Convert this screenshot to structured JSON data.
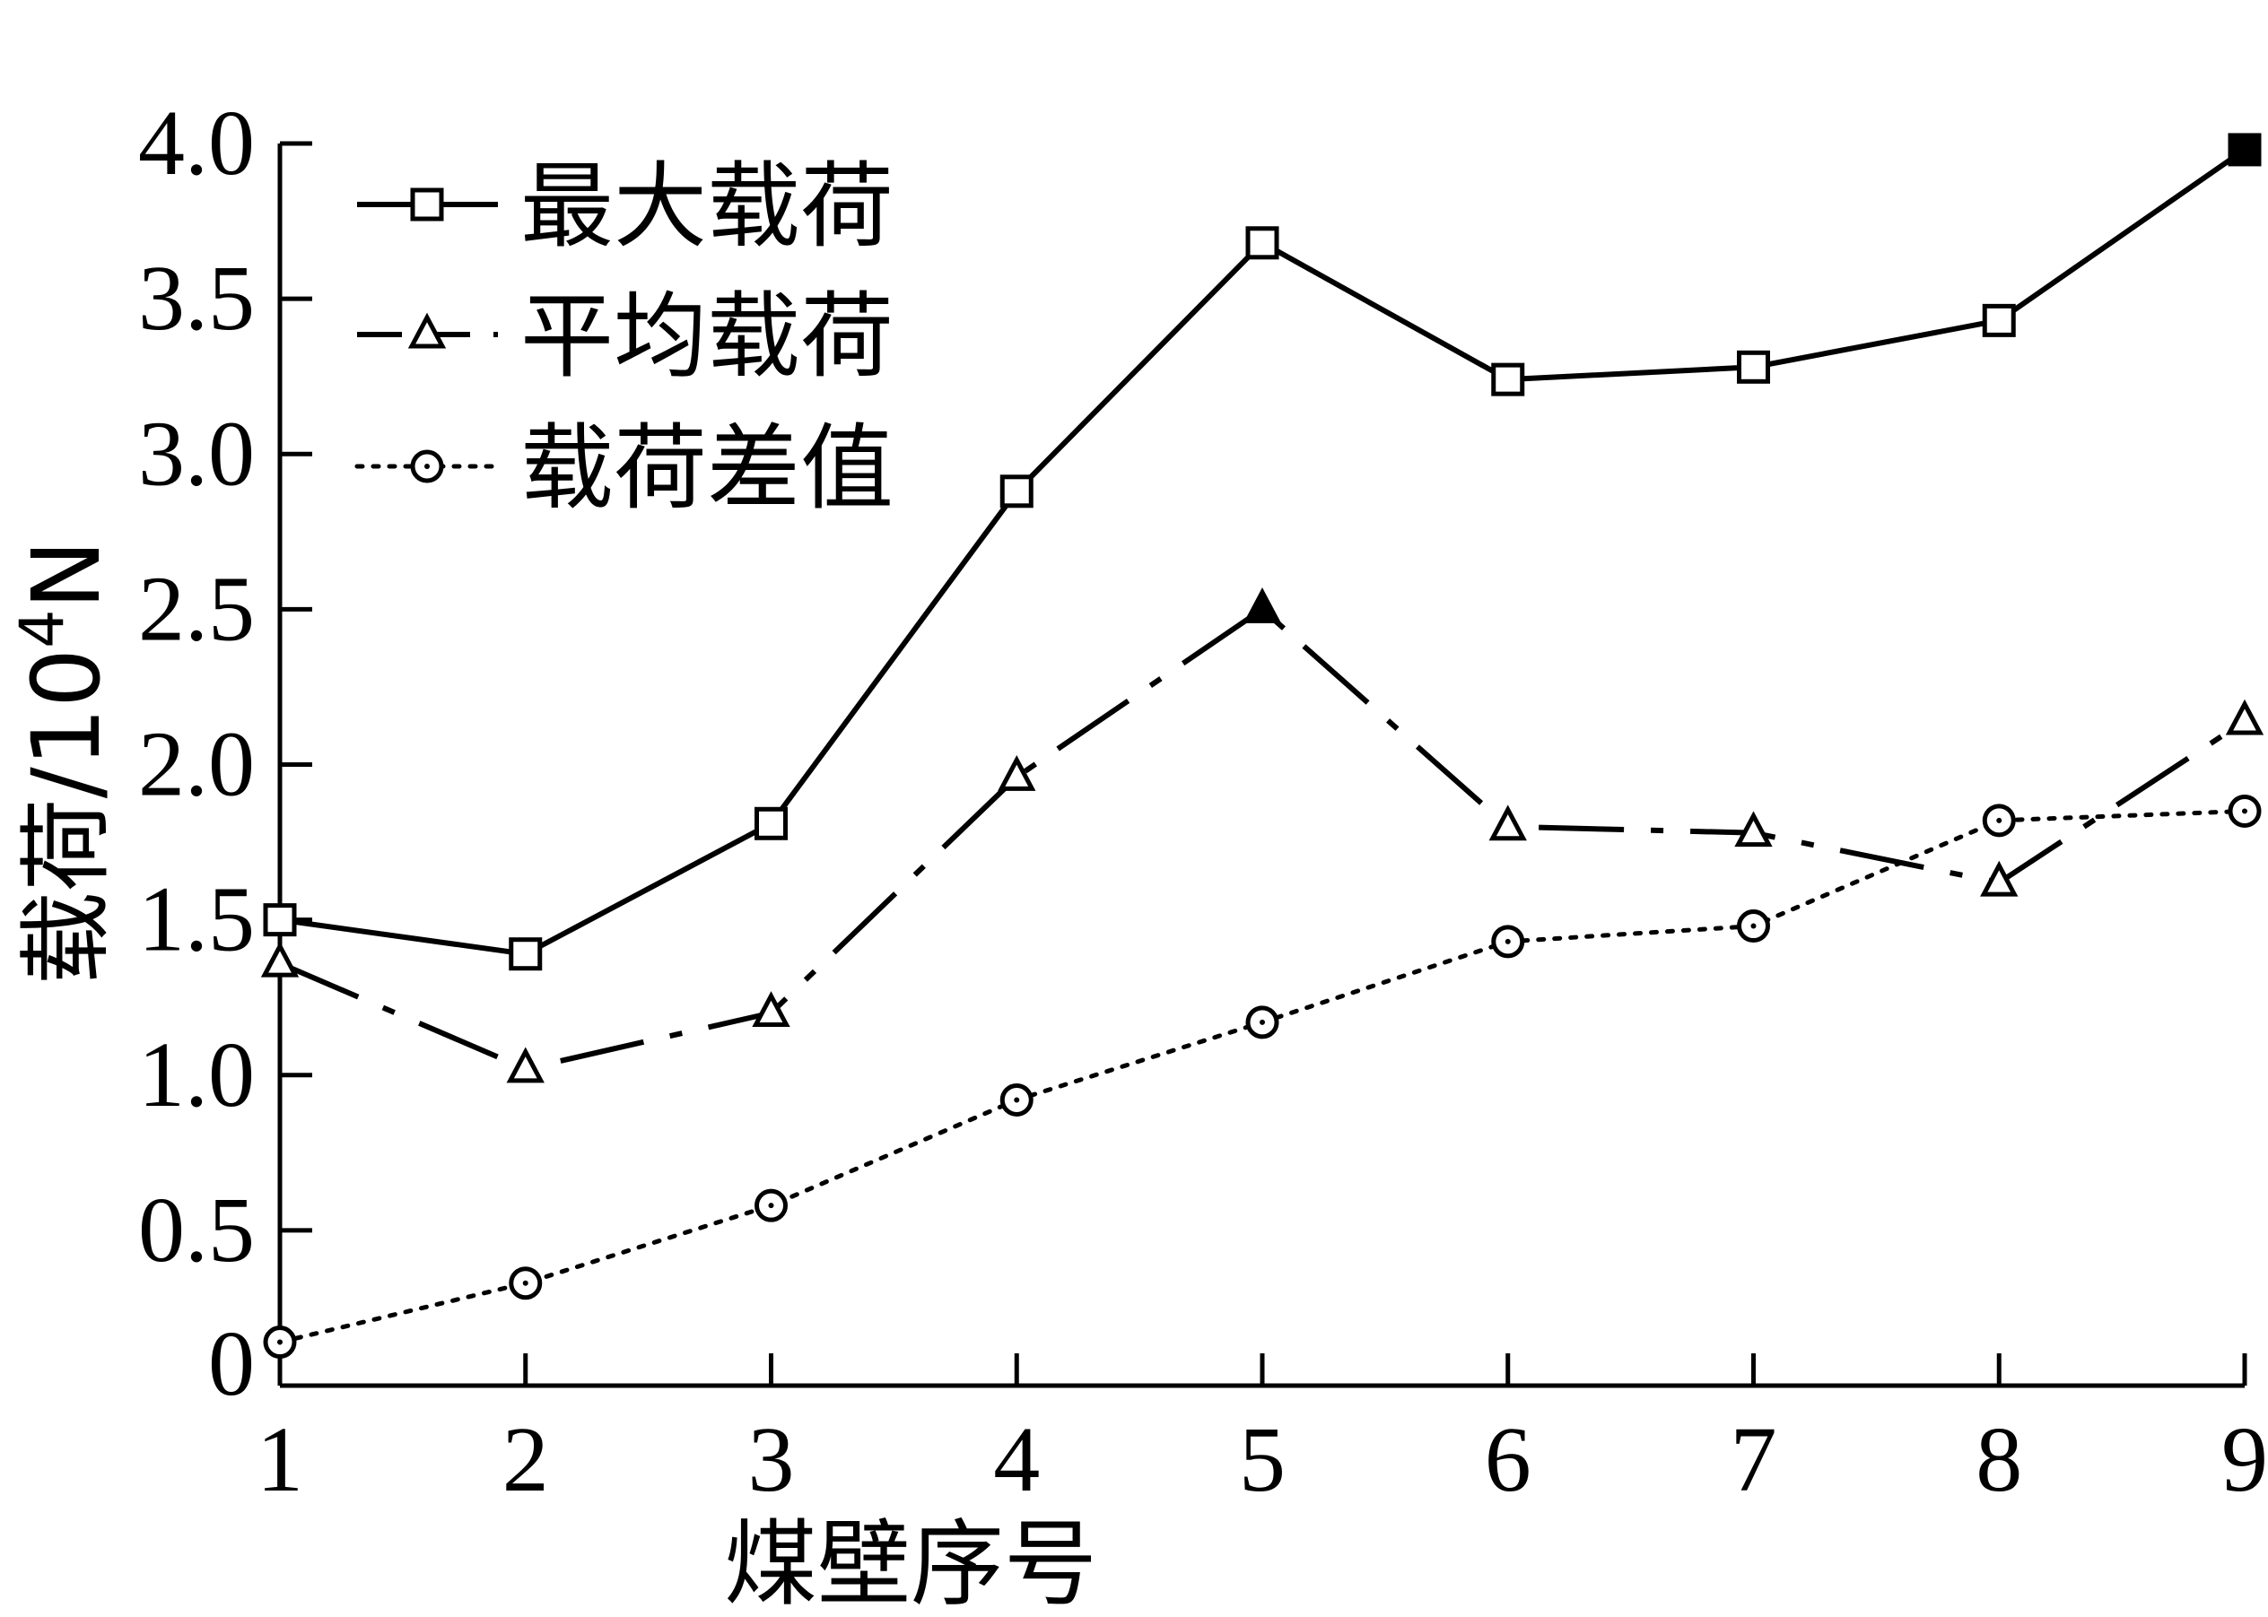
{
  "chart_data": {
    "type": "line",
    "x": [
      1,
      2,
      3,
      4,
      5,
      6,
      7,
      8,
      9
    ],
    "x_ticks": [
      "1",
      "2",
      "3",
      "4",
      "5",
      "6",
      "7",
      "8",
      "9"
    ],
    "y_ticks": [
      "0",
      "0.5",
      "1.0",
      "1.5",
      "2.0",
      "2.5",
      "3.0",
      "3.5",
      "4.0"
    ],
    "xlabel": "煤壁序号",
    "ylabel": "载荷/10",
    "ylabel_sup": "4",
    "ylabel_unit": "N",
    "xlim": [
      1,
      9
    ],
    "ylim": [
      0,
      4.0
    ],
    "grid": false,
    "legend_position": "top-left",
    "series": [
      {
        "name": "最大载荷",
        "marker": "square",
        "line": "solid",
        "values": [
          1.5,
          1.39,
          1.81,
          2.88,
          3.68,
          3.24,
          3.28,
          3.43,
          3.98
        ],
        "filled_points": [
          8
        ]
      },
      {
        "name": "平均载荷",
        "marker": "triangle",
        "line": "dash-dot",
        "values": [
          1.36,
          1.02,
          1.2,
          1.96,
          2.5,
          1.8,
          1.78,
          1.62,
          2.14
        ],
        "filled_points": [
          4
        ]
      },
      {
        "name": "载荷差值",
        "marker": "circle",
        "line": "dotted",
        "values": [
          0.14,
          0.33,
          0.58,
          0.92,
          1.17,
          1.43,
          1.48,
          1.82,
          1.85
        ],
        "filled_points": []
      }
    ],
    "colors": {
      "line": "#000000",
      "background": "#ffffff"
    }
  }
}
